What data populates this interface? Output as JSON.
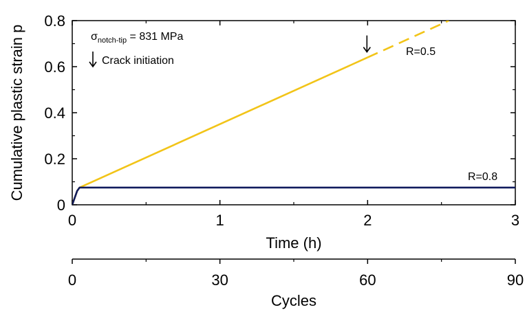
{
  "chart_data": {
    "type": "line",
    "title": "",
    "xlabel": "Time (h)",
    "ylabel": "Cumulative plastic strain p",
    "xlim": [
      0,
      3
    ],
    "ylim": [
      0,
      0.8
    ],
    "x_ticks": [
      0,
      1,
      2,
      3
    ],
    "x_tick_labels": [
      "0",
      "1",
      "2",
      "3"
    ],
    "y_ticks": [
      0,
      0.2,
      0.4,
      0.6,
      0.8
    ],
    "y_tick_labels": [
      "0",
      "0.2",
      "0.4",
      "0.6",
      "0.8"
    ],
    "secondary_x": {
      "label": "Cycles",
      "lim": [
        0,
        90
      ],
      "ticks": [
        0,
        30,
        60,
        90
      ],
      "tick_labels": [
        "0",
        "30",
        "60",
        "90"
      ]
    },
    "series": [
      {
        "name": "R=0.5",
        "color": "#f2c418",
        "segments": [
          {
            "style": "solid",
            "x": [
              0,
              0.033,
              0.05,
              2.0
            ],
            "y": [
              0,
              0.06,
              0.075,
              0.64
            ]
          },
          {
            "style": "dashed",
            "x": [
              2.0,
              2.55
            ],
            "y": [
              0.64,
              0.8
            ]
          }
        ]
      },
      {
        "name": "R=0.8",
        "color": "#101a5c",
        "segments": [
          {
            "style": "solid",
            "x": [
              0,
              0.033,
              0.05,
              3.0
            ],
            "y": [
              0,
              0.06,
              0.075,
              0.075
            ]
          }
        ]
      }
    ],
    "annotations": {
      "stress_symbol": "σ",
      "stress_subscript": "notch-tip",
      "stress_value": " = 831 MPa",
      "legend_arrow_label": "Crack initiation",
      "crack_initiation": {
        "x": 2.0,
        "y": 0.64
      }
    },
    "grid": false
  }
}
